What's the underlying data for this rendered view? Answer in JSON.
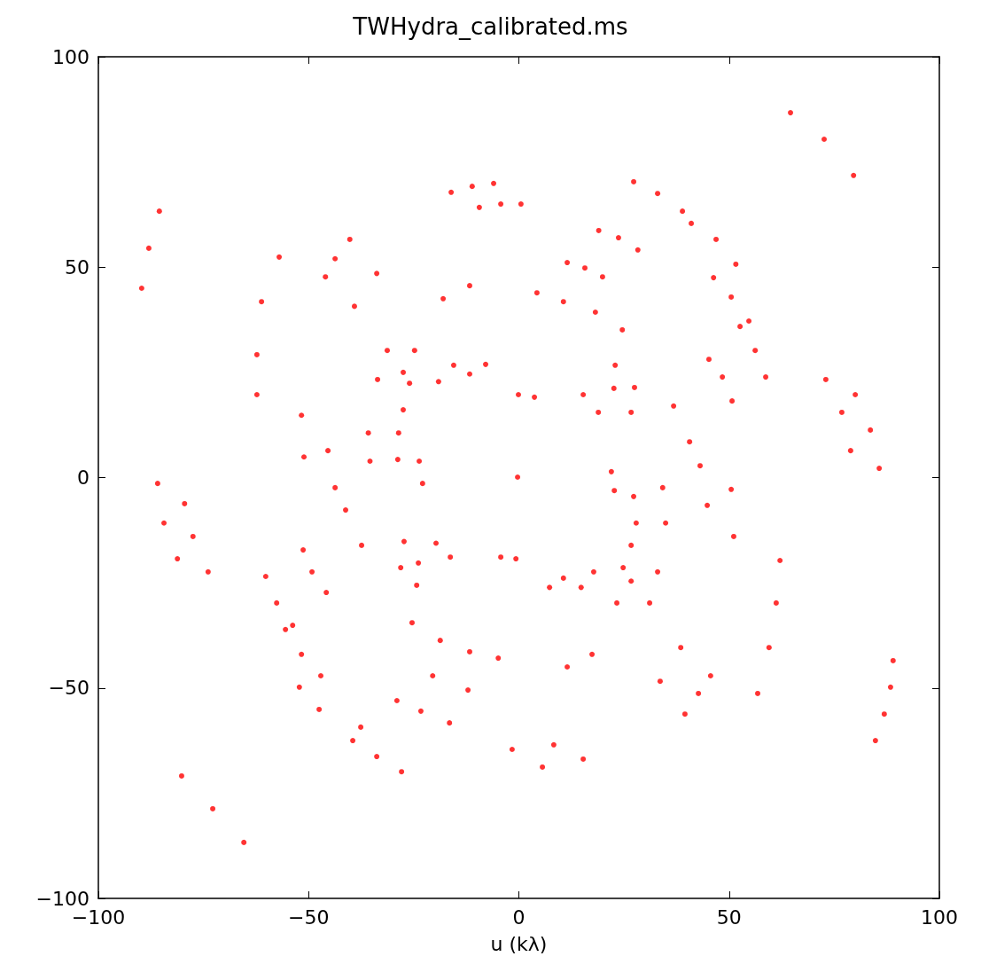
{
  "chart_data": {
    "type": "scatter",
    "title": "TWHydra_calibrated.ms",
    "xlabel": "u (kλ)",
    "xlim": [
      -100,
      100
    ],
    "ylim": [
      -100,
      100
    ],
    "xticks": [
      -100,
      -50,
      0,
      50,
      100
    ],
    "yticks": [
      -100,
      -50,
      0,
      50,
      100
    ],
    "grid": false,
    "marker": "circle",
    "series": [
      {
        "color": "#ff0000",
        "x": [
          64.6,
          72.6,
          79.6,
          -89.7,
          -88.0,
          -85.5,
          -16.1,
          -11.1,
          -6.0,
          -9.4,
          -4.3,
          0.5,
          27.3,
          33.0,
          38.9,
          41.0,
          46.9,
          51.6,
          19.0,
          23.7,
          28.3,
          11.5,
          15.7,
          19.9,
          4.3,
          10.6,
          18.2,
          24.6,
          46.3,
          50.5,
          54.7,
          52.6,
          56.2,
          58.7,
          45.2,
          48.4,
          50.7,
          73.0,
          76.8,
          78.9,
          80.0,
          83.6,
          85.7,
          -57.0,
          -61.2,
          -62.3,
          -62.3,
          -46.0,
          -43.7,
          -40.2,
          -39.1,
          -33.8,
          -18.0,
          -11.7,
          -33.6,
          -31.3,
          -27.5,
          -24.8,
          -27.5,
          -26.0,
          -19.1,
          -15.5,
          -11.7,
          -7.9,
          -0.1,
          3.7,
          15.3,
          18.9,
          22.6,
          26.7,
          22.9,
          27.5,
          36.8,
          40.6,
          -51.7,
          -51.1,
          -45.4,
          -43.7,
          -35.8,
          -35.4,
          -28.6,
          -28.8,
          -23.7,
          -22.9,
          -0.3,
          43.1,
          44.8,
          50.5,
          51.1,
          34.2,
          34.9,
          27.3,
          27.9,
          22.0,
          22.7,
          -85.9,
          -84.4,
          -81.2,
          -79.5,
          -77.5,
          -73.9,
          -41.2,
          -37.4,
          -27.3,
          -23.9,
          -19.7,
          -16.3,
          -4.3,
          -0.7,
          -28.1,
          -24.3,
          -51.3,
          -49.2,
          -45.8,
          -60.2,
          -57.6,
          -53.8,
          -55.5,
          -51.7,
          -47.1,
          -52.2,
          -47.5,
          -37.6,
          -39.5,
          -33.8,
          -27.9,
          -29.0,
          -23.3,
          -16.5,
          -20.5,
          -12.1,
          -25.4,
          -18.7,
          -11.7,
          -4.9,
          -1.6,
          8.3,
          5.6,
          15.3,
          11.5,
          17.4,
          7.3,
          10.6,
          14.8,
          17.8,
          23.3,
          26.7,
          24.8,
          26.7,
          31.1,
          33.0,
          33.6,
          38.5,
          39.5,
          42.7,
          45.6,
          56.8,
          59.5,
          61.2,
          62.1,
          84.8,
          86.9,
          88.4,
          89.0,
          -80.2,
          -72.8,
          -65.4
        ],
        "values": [
          86.7,
          80.4,
          71.8,
          45.0,
          54.5,
          63.3,
          67.8,
          69.2,
          69.9,
          64.2,
          65.0,
          65.0,
          70.3,
          67.5,
          63.3,
          60.4,
          56.6,
          50.7,
          58.7,
          57.0,
          54.1,
          51.1,
          49.8,
          47.7,
          43.9,
          41.8,
          39.3,
          35.1,
          47.5,
          42.9,
          37.2,
          35.9,
          30.2,
          23.9,
          28.1,
          23.9,
          18.2,
          23.3,
          15.5,
          6.4,
          19.7,
          11.3,
          2.2,
          52.4,
          41.8,
          29.2,
          19.7,
          47.7,
          52.0,
          56.6,
          40.7,
          48.5,
          42.5,
          45.6,
          23.3,
          30.2,
          25.0,
          30.2,
          16.1,
          22.4,
          22.8,
          26.7,
          24.6,
          26.9,
          19.7,
          19.1,
          19.7,
          15.5,
          21.2,
          15.5,
          26.7,
          21.4,
          17.0,
          8.5,
          14.8,
          4.9,
          6.4,
          -2.4,
          10.6,
          3.9,
          10.6,
          4.3,
          3.9,
          -1.4,
          0.1,
          2.8,
          -6.6,
          -2.8,
          -14.0,
          -2.4,
          -10.8,
          -4.5,
          -10.8,
          1.4,
          -3.1,
          -1.4,
          -10.8,
          -19.3,
          -6.2,
          -14.0,
          -22.4,
          -7.7,
          -16.1,
          -15.2,
          -20.3,
          -15.6,
          -18.9,
          -18.9,
          -19.3,
          -21.4,
          -25.6,
          -17.2,
          -22.4,
          -27.3,
          -23.5,
          -29.8,
          -35.1,
          -36.1,
          -42.0,
          -47.1,
          -49.8,
          -55.1,
          -59.3,
          -62.5,
          -66.3,
          -69.9,
          -53.0,
          -55.5,
          -58.3,
          -47.1,
          -50.5,
          -34.5,
          -38.7,
          -41.4,
          -42.9,
          -64.6,
          -63.5,
          -68.8,
          -66.9,
          -45.0,
          -42.0,
          -26.1,
          -23.9,
          -26.1,
          -22.4,
          -29.8,
          -24.6,
          -21.4,
          -16.1,
          -29.8,
          -22.4,
          -48.4,
          -40.4,
          -56.2,
          -51.3,
          -47.1,
          -51.3,
          -40.4,
          -29.8,
          -19.7,
          -62.5,
          -56.2,
          -49.8,
          -43.5,
          -70.9,
          -78.7,
          -86.7
        ]
      }
    ]
  }
}
